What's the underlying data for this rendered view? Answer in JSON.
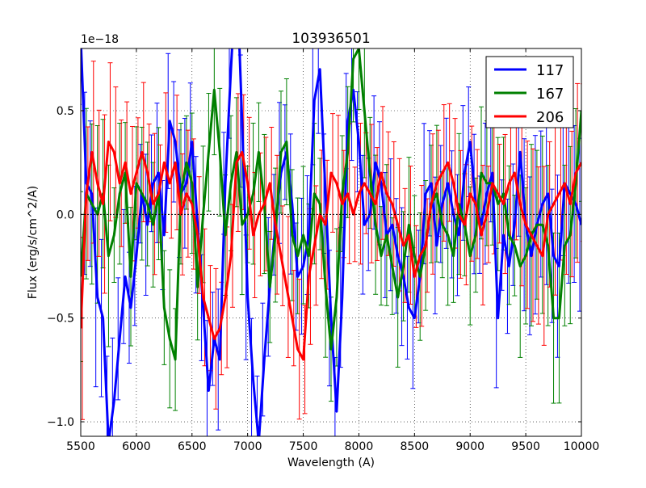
{
  "chart_data": {
    "type": "line",
    "title": "103936501",
    "xlabel": "Wavelength (A)",
    "ylabel": "Flux (erg/s/cm^2/A)",
    "y_scale_label": "1e−18",
    "xlim": [
      5500,
      10000
    ],
    "ylim": [
      -1.07,
      0.8
    ],
    "x_ticks": [
      5500,
      6000,
      6500,
      7000,
      7500,
      8000,
      8500,
      9000,
      9500,
      10000
    ],
    "x_tick_labels": [
      "5500",
      "6000",
      "6500",
      "7000",
      "7500",
      "8000",
      "8500",
      "9000",
      "9500",
      "10000"
    ],
    "y_ticks": [
      -1.0,
      -0.5,
      0.0,
      0.5
    ],
    "y_tick_labels": [
      "−1.0",
      "−0.5",
      "0.0",
      "0.5"
    ],
    "grid": true,
    "legend_position": "top-right",
    "x": [
      5500,
      5550,
      5600,
      5650,
      5700,
      5750,
      5800,
      5850,
      5900,
      5950,
      6000,
      6050,
      6100,
      6150,
      6200,
      6250,
      6300,
      6350,
      6400,
      6450,
      6500,
      6550,
      6600,
      6650,
      6700,
      6750,
      6800,
      6850,
      6900,
      6950,
      7000,
      7050,
      7100,
      7150,
      7200,
      7250,
      7300,
      7350,
      7400,
      7450,
      7500,
      7550,
      7600,
      7650,
      7700,
      7750,
      7800,
      7850,
      7900,
      7950,
      8000,
      8050,
      8100,
      8150,
      8200,
      8250,
      8300,
      8350,
      8400,
      8450,
      8500,
      8550,
      8600,
      8650,
      8700,
      8750,
      8800,
      8850,
      8900,
      8950,
      9000,
      9050,
      9100,
      9150,
      9200,
      9250,
      9300,
      9350,
      9400,
      9450,
      9500,
      9550,
      9600,
      9650,
      9700,
      9750,
      9800,
      9850,
      9900,
      9950,
      10000
    ],
    "series": [
      {
        "name": "117",
        "color": "#0000ff",
        "values": [
          0.85,
          0.15,
          0.1,
          -0.4,
          -0.5,
          -1.1,
          -0.9,
          -0.6,
          -0.3,
          -0.45,
          -0.2,
          0.1,
          -0.05,
          0.15,
          0.2,
          -0.1,
          0.45,
          0.35,
          0.1,
          0.15,
          0.35,
          -0.05,
          -0.45,
          -0.85,
          -0.6,
          -0.7,
          0.15,
          0.7,
          1.2,
          0.45,
          -0.4,
          -0.8,
          -1.1,
          -0.7,
          -0.35,
          -0.05,
          0.2,
          0.3,
          0.05,
          -0.3,
          -0.25,
          -0.1,
          0.55,
          0.7,
          0.1,
          -0.5,
          -0.95,
          -0.4,
          0.45,
          0.6,
          0.35,
          -0.05,
          0.0,
          0.25,
          0.15,
          -0.1,
          -0.05,
          -0.2,
          -0.3,
          -0.45,
          -0.5,
          -0.3,
          0.1,
          0.15,
          -0.15,
          0.05,
          0.15,
          0.0,
          -0.1,
          0.2,
          0.35,
          0.05,
          -0.05,
          0.1,
          0.2,
          -0.5,
          -0.1,
          -0.25,
          -0.05,
          0.3,
          -0.05,
          -0.2,
          -0.05,
          0.05,
          0.1,
          -0.2,
          -0.25,
          0.15,
          0.1,
          0.05,
          -0.05
        ]
      },
      {
        "name": "167",
        "color": "#008000",
        "values": [
          -0.3,
          0.1,
          0.05,
          0.0,
          0.1,
          -0.2,
          -0.1,
          0.1,
          0.2,
          -0.3,
          0.15,
          0.1,
          0.05,
          -0.05,
          0.1,
          -0.45,
          -0.6,
          -0.7,
          0.1,
          0.25,
          0.15,
          -0.35,
          0.0,
          0.3,
          0.6,
          0.3,
          -0.1,
          0.15,
          0.3,
          -0.05,
          0.0,
          0.1,
          0.3,
          0.05,
          -0.35,
          -0.1,
          0.3,
          0.35,
          -0.1,
          -0.2,
          -0.1,
          -0.2,
          0.1,
          0.05,
          -0.35,
          -0.65,
          -0.4,
          0.1,
          0.3,
          0.75,
          0.8,
          0.5,
          0.2,
          -0.05,
          -0.2,
          -0.1,
          -0.25,
          -0.4,
          -0.25,
          -0.05,
          -0.2,
          -0.3,
          -0.15,
          0.05,
          0.1,
          -0.05,
          -0.1,
          -0.2,
          0.05,
          -0.05,
          -0.2,
          -0.1,
          0.2,
          0.15,
          0.15,
          0.05,
          0.1,
          -0.1,
          -0.15,
          -0.25,
          -0.2,
          -0.1,
          -0.05,
          -0.05,
          -0.15,
          -0.5,
          -0.5,
          -0.15,
          -0.1,
          0.15,
          0.5
        ]
      },
      {
        "name": "206",
        "color": "#ff0000",
        "values": [
          -0.55,
          0.1,
          0.3,
          0.15,
          0.05,
          0.35,
          0.3,
          0.15,
          0.25,
          0.1,
          0.2,
          0.3,
          0.2,
          0.05,
          0.1,
          0.25,
          0.15,
          0.25,
          0.0,
          0.1,
          0.05,
          -0.1,
          -0.4,
          -0.5,
          -0.6,
          -0.55,
          -0.4,
          -0.2,
          0.25,
          0.3,
          0.15,
          -0.1,
          0.0,
          0.05,
          0.15,
          -0.05,
          -0.2,
          -0.35,
          -0.5,
          -0.65,
          -0.7,
          -0.3,
          -0.15,
          0.0,
          -0.05,
          0.2,
          0.15,
          0.05,
          0.1,
          0.0,
          0.1,
          0.15,
          0.1,
          0.05,
          0.2,
          0.1,
          0.05,
          -0.05,
          -0.15,
          -0.1,
          -0.3,
          -0.2,
          -0.15,
          0.05,
          0.15,
          0.2,
          0.25,
          0.15,
          0.0,
          -0.05,
          0.1,
          0.05,
          -0.1,
          0.0,
          0.15,
          0.1,
          0.05,
          0.15,
          0.2,
          0.05,
          -0.05,
          -0.1,
          -0.15,
          -0.2,
          0.0,
          0.05,
          0.1,
          0.15,
          0.05,
          0.2,
          0.25
        ]
      }
    ]
  }
}
